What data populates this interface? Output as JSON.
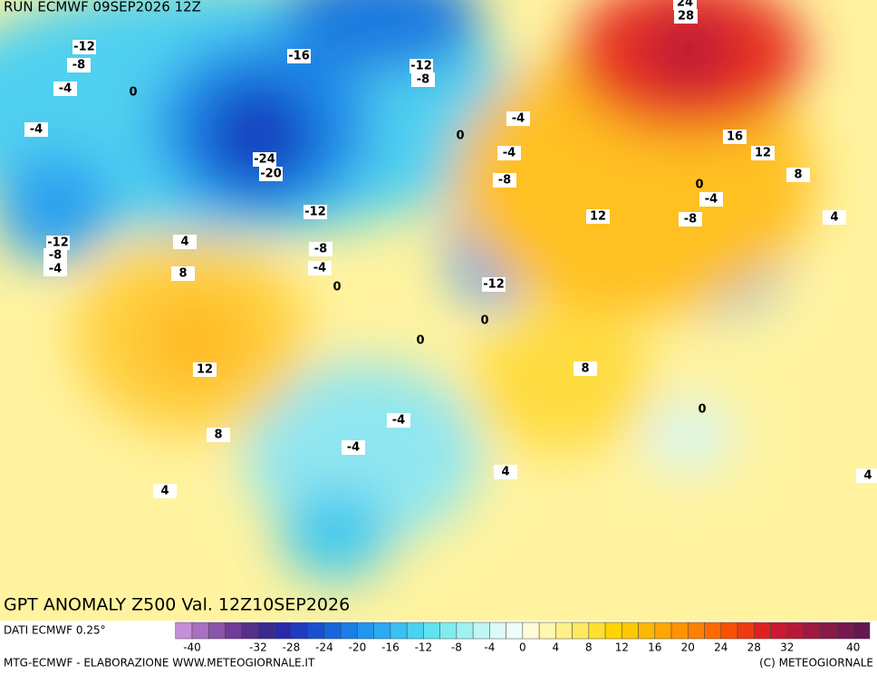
{
  "header": {
    "run": "RUN ECMWF 09SEP2026 12Z"
  },
  "map": {
    "title": "GPT ANOMALY Z500 Val. 12Z10SEP2026",
    "contour_labels": [
      24,
      28,
      -12,
      -8,
      -4,
      0,
      -16,
      -12,
      -8,
      -4,
      -4,
      0,
      -4,
      16,
      12,
      8,
      -24,
      -20,
      -8,
      0,
      -4,
      -12,
      12,
      4,
      -8,
      -12,
      -8,
      4,
      -4,
      -8,
      -4,
      8,
      0,
      -12,
      0,
      0,
      12,
      8,
      0,
      -4,
      8,
      -4,
      4,
      4,
      4
    ]
  },
  "legend": {
    "source": "DATI ECMWF 0.25°",
    "colors": [
      "#c58fd6",
      "#a870c0",
      "#8c55aa",
      "#703c96",
      "#55308a",
      "#3a2a90",
      "#2a2aa8",
      "#1f3cc0",
      "#1a50d0",
      "#1866dc",
      "#1a7ee6",
      "#2296ee",
      "#2aaaf2",
      "#3ac0f4",
      "#4ad2f2",
      "#60e2f0",
      "#80ecf0",
      "#a0f2f2",
      "#c0f6f4",
      "#dcfaf8",
      "#eefcfa",
      "#fffbd8",
      "#fff6b0",
      "#fff08a",
      "#ffe860",
      "#ffe030",
      "#ffd400",
      "#ffc800",
      "#ffb800",
      "#ffa600",
      "#ff9400",
      "#ff8000",
      "#ff6a00",
      "#f85000",
      "#ee3a10",
      "#e02020",
      "#cc1830",
      "#b81838",
      "#a01840",
      "#8c1848",
      "#781850",
      "#641850"
    ],
    "range": [
      -42,
      42
    ],
    "ticks": [
      -40,
      -32,
      -28,
      -24,
      -20,
      -16,
      -12,
      -8,
      -4,
      0,
      4,
      8,
      12,
      16,
      20,
      24,
      28,
      32,
      40
    ]
  },
  "footer": {
    "left": "MTG-ECMWF - ELABORAZIONE WWW.METEOGIORNALE.IT",
    "right": "(C) METEOGIORNALE"
  }
}
